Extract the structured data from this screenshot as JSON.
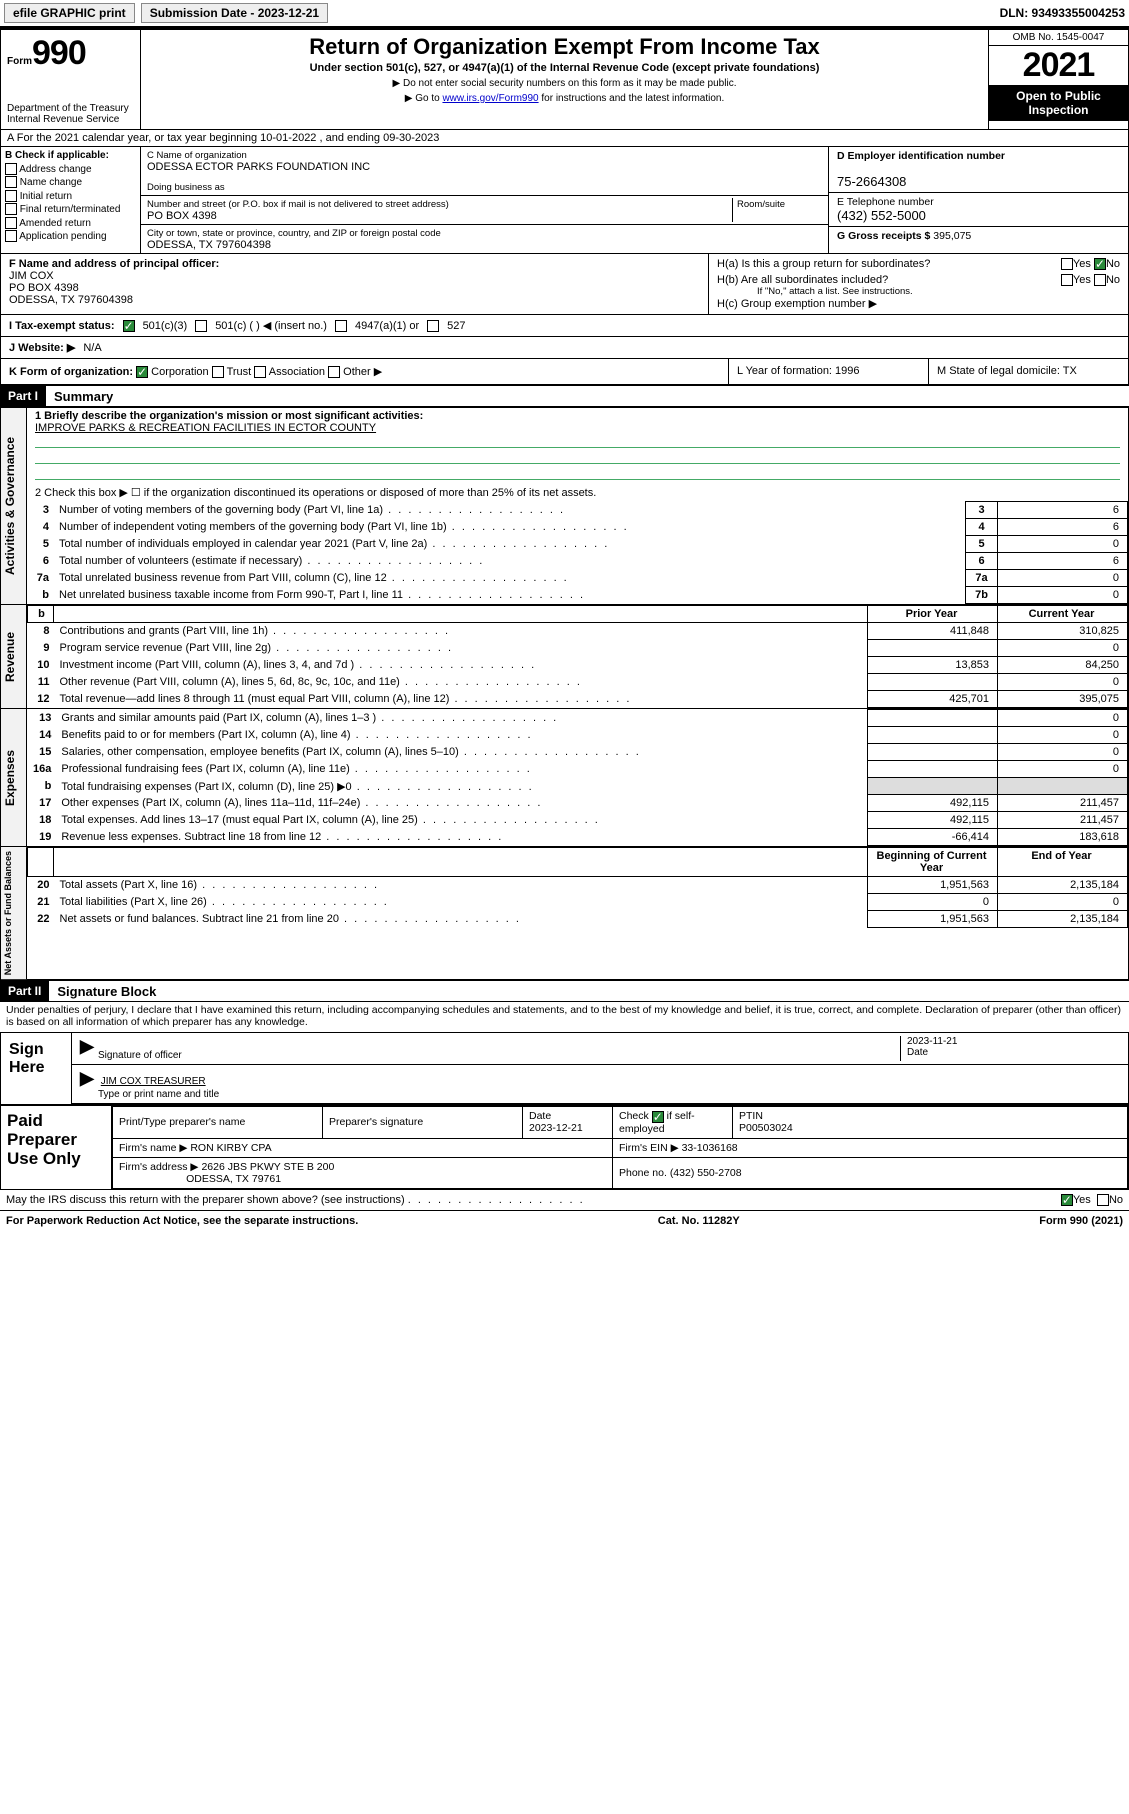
{
  "topbar": {
    "efile": "efile GRAPHIC print",
    "submission_label": "Submission Date - 2023-12-21",
    "dln": "DLN: 93493355004253"
  },
  "header": {
    "form_word": "Form",
    "form_num": "990",
    "dept": "Department of the Treasury",
    "irs": "Internal Revenue Service",
    "title": "Return of Organization Exempt From Income Tax",
    "subtitle": "Under section 501(c), 527, or 4947(a)(1) of the Internal Revenue Code (except private foundations)",
    "note1": "▶ Do not enter social security numbers on this form as it may be made public.",
    "note2_pre": "▶ Go to ",
    "note2_link": "www.irs.gov/Form990",
    "note2_post": " for instructions and the latest information.",
    "omb": "OMB No. 1545-0047",
    "year": "2021",
    "open1": "Open to Public",
    "open2": "Inspection"
  },
  "lineA": "A For the 2021 calendar year, or tax year beginning 10-01-2022   , and ending 09-30-2023",
  "colB": {
    "title": "B Check if applicable:",
    "items": [
      "Address change",
      "Name change",
      "Initial return",
      "Final return/terminated",
      "Amended return",
      "Application pending"
    ]
  },
  "colC": {
    "label_name": "C Name of organization",
    "name": "ODESSA ECTOR PARKS FOUNDATION INC",
    "dba_label": "Doing business as",
    "addr_label": "Number and street (or P.O. box if mail is not delivered to street address)",
    "room_label": "Room/suite",
    "addr": "PO BOX 4398",
    "city_label": "City or town, state or province, country, and ZIP or foreign postal code",
    "city": "ODESSA, TX  797604398"
  },
  "colDE": {
    "d_label": "D Employer identification number",
    "ein": "75-2664308",
    "e_label": "E Telephone number",
    "phone": "(432) 552-5000",
    "g_label": "G Gross receipts $ ",
    "gross": "395,075"
  },
  "colF": {
    "label": "F Name and address of principal officer:",
    "name": "JIM COX",
    "addr1": "PO BOX 4398",
    "addr2": "ODESSA, TX  797604398"
  },
  "colH": {
    "ha": "H(a)  Is this a group return for subordinates?",
    "hb": "H(b)  Are all subordinates included?",
    "hb_note": "If \"No,\" attach a list. See instructions.",
    "hc": "H(c)  Group exemption number ▶",
    "yes": "Yes",
    "no": "No"
  },
  "rowI": {
    "label": "I   Tax-exempt status:",
    "o1": "501(c)(3)",
    "o2": "501(c) (  ) ◀ (insert no.)",
    "o3": "4947(a)(1) or",
    "o4": "527"
  },
  "rowJ": {
    "label": "J   Website: ▶",
    "val": "N/A"
  },
  "rowK": {
    "label": "K Form of organization:",
    "o1": "Corporation",
    "o2": "Trust",
    "o3": "Association",
    "o4": "Other ▶",
    "l": "L Year of formation: 1996",
    "m": "M State of legal domicile: TX"
  },
  "partI": {
    "hdr": "Part I",
    "title": "Summary"
  },
  "summary": {
    "l1_label": "1   Briefly describe the organization's mission or most significant activities:",
    "l1_text": "IMPROVE PARKS & RECREATION FACILITIES IN ECTOR COUNTY",
    "l2": "2   Check this box ▶ ☐  if the organization discontinued its operations or disposed of more than 25% of its net assets.",
    "rows_top": [
      {
        "n": "3",
        "d": "Number of voting members of the governing body (Part VI, line 1a)",
        "box": "3",
        "v": "6"
      },
      {
        "n": "4",
        "d": "Number of independent voting members of the governing body (Part VI, line 1b)",
        "box": "4",
        "v": "6"
      },
      {
        "n": "5",
        "d": "Total number of individuals employed in calendar year 2021 (Part V, line 2a)",
        "box": "5",
        "v": "0"
      },
      {
        "n": "6",
        "d": "Total number of volunteers (estimate if necessary)",
        "box": "6",
        "v": "6"
      },
      {
        "n": "7a",
        "d": "Total unrelated business revenue from Part VIII, column (C), line 12",
        "box": "7a",
        "v": "0"
      },
      {
        "n": "b",
        "d": "Net unrelated business taxable income from Form 990-T, Part I, line 11",
        "box": "7b",
        "v": "0"
      }
    ],
    "col_hdr_b": "b",
    "col_hdr_prior": "Prior Year",
    "col_hdr_current": "Current Year",
    "revenue": [
      {
        "n": "8",
        "d": "Contributions and grants (Part VIII, line 1h)",
        "p": "411,848",
        "c": "310,825"
      },
      {
        "n": "9",
        "d": "Program service revenue (Part VIII, line 2g)",
        "p": "",
        "c": "0"
      },
      {
        "n": "10",
        "d": "Investment income (Part VIII, column (A), lines 3, 4, and 7d )",
        "p": "13,853",
        "c": "84,250"
      },
      {
        "n": "11",
        "d": "Other revenue (Part VIII, column (A), lines 5, 6d, 8c, 9c, 10c, and 11e)",
        "p": "",
        "c": "0"
      },
      {
        "n": "12",
        "d": "Total revenue—add lines 8 through 11 (must equal Part VIII, column (A), line 12)",
        "p": "425,701",
        "c": "395,075"
      }
    ],
    "expenses": [
      {
        "n": "13",
        "d": "Grants and similar amounts paid (Part IX, column (A), lines 1–3 )",
        "p": "",
        "c": "0"
      },
      {
        "n": "14",
        "d": "Benefits paid to or for members (Part IX, column (A), line 4)",
        "p": "",
        "c": "0"
      },
      {
        "n": "15",
        "d": "Salaries, other compensation, employee benefits (Part IX, column (A), lines 5–10)",
        "p": "",
        "c": "0"
      },
      {
        "n": "16a",
        "d": "Professional fundraising fees (Part IX, column (A), line 11e)",
        "p": "",
        "c": "0"
      },
      {
        "n": "b",
        "d": "Total fundraising expenses (Part IX, column (D), line 25) ▶0",
        "p": "shade",
        "c": "shade"
      },
      {
        "n": "17",
        "d": "Other expenses (Part IX, column (A), lines 11a–11d, 11f–24e)",
        "p": "492,115",
        "c": "211,457"
      },
      {
        "n": "18",
        "d": "Total expenses. Add lines 13–17 (must equal Part IX, column (A), line 25)",
        "p": "492,115",
        "c": "211,457"
      },
      {
        "n": "19",
        "d": "Revenue less expenses. Subtract line 18 from line 12",
        "p": "-66,414",
        "c": "183,618"
      }
    ],
    "na_hdr_b": "Beginning of Current Year",
    "na_hdr_c": "End of Year",
    "netassets": [
      {
        "n": "20",
        "d": "Total assets (Part X, line 16)",
        "p": "1,951,563",
        "c": "2,135,184"
      },
      {
        "n": "21",
        "d": "Total liabilities (Part X, line 26)",
        "p": "0",
        "c": "0"
      },
      {
        "n": "22",
        "d": "Net assets or fund balances. Subtract line 21 from line 20",
        "p": "1,951,563",
        "c": "2,135,184"
      }
    ]
  },
  "side_labels": {
    "gov": "Activities & Governance",
    "rev": "Revenue",
    "exp": "Expenses",
    "na": "Net Assets or Fund Balances"
  },
  "partII": {
    "hdr": "Part II",
    "title": "Signature Block"
  },
  "sig": {
    "decl": "Under penalties of perjury, I declare that I have examined this return, including accompanying schedules and statements, and to the best of my knowledge and belief, it is true, correct, and complete. Declaration of preparer (other than officer) is based on all information of which preparer has any knowledge.",
    "sign_here": "Sign Here",
    "sig_officer": "Signature of officer",
    "date": "Date",
    "date_val": "2023-11-21",
    "name_title": "JIM COX TREASURER",
    "type_name": "Type or print name and title"
  },
  "paid": {
    "side": "Paid Preparer Use Only",
    "h1": "Print/Type preparer's name",
    "h2": "Preparer's signature",
    "h3": "Date",
    "h3v": "2023-12-21",
    "h4a": "Check",
    "h4b": "if self-employed",
    "h5": "PTIN",
    "ptin": "P00503024",
    "firm_name_l": "Firm's name    ▶",
    "firm_name": "RON KIRBY CPA",
    "firm_ein_l": "Firm's EIN ▶",
    "firm_ein": "33-1036168",
    "firm_addr_l": "Firm's address ▶",
    "firm_addr1": "2626 JBS PKWY STE B 200",
    "firm_addr2": "ODESSA, TX  79761",
    "phone_l": "Phone no.",
    "phone": "(432) 550-2708"
  },
  "bottom": {
    "q": "May the IRS discuss this return with the preparer shown above? (see instructions)",
    "yes": "Yes",
    "no": "No",
    "pra": "For Paperwork Reduction Act Notice, see the separate instructions.",
    "cat": "Cat. No. 11282Y",
    "form": "Form 990 (2021)"
  }
}
